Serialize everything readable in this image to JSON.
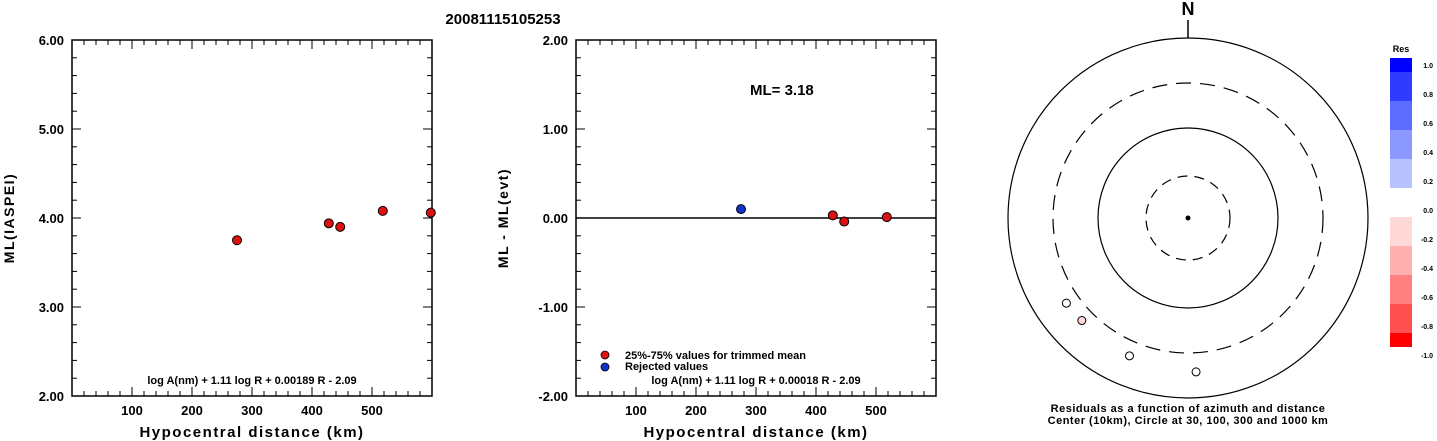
{
  "page_title": "20081115105253",
  "chart_data": [
    {
      "type": "scatter",
      "xlabel": "Hypocentral distance (km)",
      "ylabel": "ML(IASPEI)",
      "xlim": [
        0,
        600
      ],
      "ylim": [
        2.0,
        6.0
      ],
      "x_ticks": [
        100,
        200,
        300,
        400,
        500
      ],
      "y_ticks": [
        "2.00",
        "3.00",
        "4.00",
        "5.00",
        "6.00"
      ],
      "formula": "log A(nm) + 1.11 log R + 0.00189 R - 2.09",
      "series": [
        {
          "color": "#dd1111",
          "points": [
            [
              275,
              3.75
            ],
            [
              428,
              3.94
            ],
            [
              447,
              3.9
            ],
            [
              518,
              4.08
            ],
            [
              598,
              4.06
            ]
          ]
        }
      ]
    },
    {
      "type": "scatter",
      "xlabel": "Hypocentral distance (km)",
      "ylabel": "ML - ML(evt)",
      "xlim": [
        0,
        600
      ],
      "ylim": [
        -2.0,
        2.0
      ],
      "x_ticks": [
        100,
        200,
        300,
        400,
        500
      ],
      "y_ticks": [
        "-2.00",
        "-1.00",
        "0.00",
        "1.00",
        "2.00"
      ],
      "annotation": "ML= 3.18",
      "formula": "log A(nm) + 1.11 log R + 0.00018 R - 2.09",
      "zero_line": true,
      "legend": [
        "25%-75% values for trimmed mean",
        "Rejected values"
      ],
      "series": [
        {
          "name": "25%-75% values for trimmed mean",
          "color": "#dd1111",
          "points": [
            [
              428,
              0.03
            ],
            [
              447,
              -0.04
            ],
            [
              518,
              0.01
            ]
          ]
        },
        {
          "name": "Rejected values",
          "color": "#1133cc",
          "points": [
            [
              275,
              0.1
            ]
          ]
        }
      ]
    },
    {
      "type": "scatter",
      "polar": true,
      "north_label": "N",
      "caption_line1": "Residuals as a function of azimuth and distance",
      "caption_line2": "Center (10km), Circle at 30, 100, 300 and 1000 km",
      "rings_km": [
        30,
        100,
        300,
        1000
      ],
      "colorbar_title": "Res",
      "colorbar_labels": [
        "1.0",
        "0.8",
        "0.6",
        "0.4",
        "0.2",
        "0.0",
        "-0.2",
        "-0.4",
        "-0.6",
        "-0.8",
        "-1.0"
      ],
      "colorbar_colors": [
        "#0000ff",
        "#2f3cff",
        "#5c6cff",
        "#8a98ff",
        "#b8c2ff",
        "#ffffff",
        "#ffd8d8",
        "#ffb0b0",
        "#ff8080",
        "#ff5050",
        "#ff0000"
      ],
      "stations": [
        {
          "azimuth_deg": 235,
          "distance_km": 430,
          "residual": 0.0
        },
        {
          "azimuth_deg": 226,
          "distance_km": 420,
          "residual": -0.1
        },
        {
          "azimuth_deg": 203,
          "distance_km": 445,
          "residual": 0.0
        },
        {
          "azimuth_deg": 177,
          "distance_km": 500,
          "residual": -0.05
        }
      ]
    }
  ]
}
